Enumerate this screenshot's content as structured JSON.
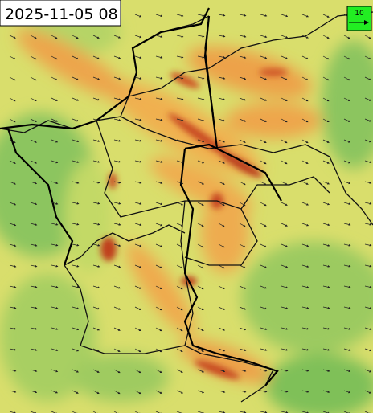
{
  "timestamp": "2025-11-05 08",
  "legend": {
    "label": "10"
  }
}
